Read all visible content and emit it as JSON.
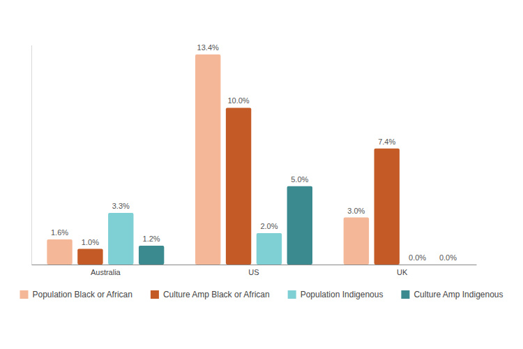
{
  "chart_data": {
    "type": "bar",
    "categories": [
      "Australia",
      "US",
      "UK"
    ],
    "series": [
      {
        "name": "Population Black or African",
        "color": "#f4b899",
        "values": [
          1.6,
          13.4,
          3.0
        ],
        "value_labels": [
          "1.6%",
          "13.4%",
          "3.0%"
        ]
      },
      {
        "name": "Culture Amp Black or African",
        "color": "#c45a26",
        "values": [
          1.0,
          10.0,
          7.4
        ],
        "value_labels": [
          "1.0%",
          "10.0%",
          "7.4%"
        ]
      },
      {
        "name": "Population Indigenous",
        "color": "#7fd0d4",
        "values": [
          3.3,
          2.0,
          0.0
        ],
        "value_labels": [
          "3.3%",
          "2.0%",
          "0.0%"
        ]
      },
      {
        "name": "Culture Amp Indigenous",
        "color": "#3a8a8f",
        "values": [
          1.2,
          5.0,
          0.0
        ],
        "value_labels": [
          "1.2%",
          "5.0%",
          "0.0%"
        ]
      }
    ],
    "ylim": [
      0,
      14
    ],
    "yticks": [],
    "data_labels": true,
    "tick_labels": "x",
    "legend": "bottom",
    "grid": false
  }
}
